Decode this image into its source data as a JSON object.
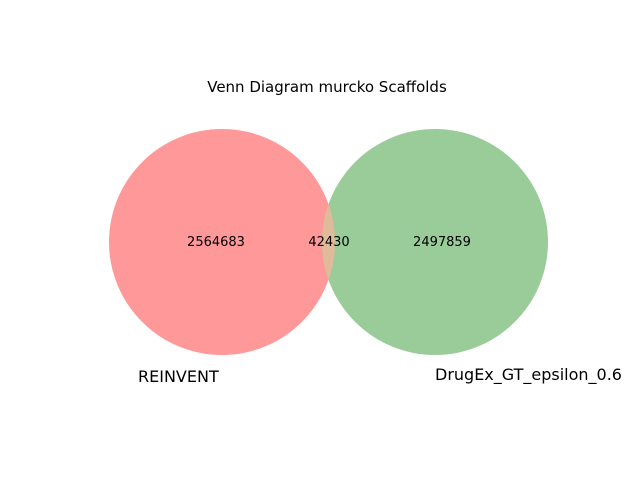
{
  "title": "Venn Diagram murcko Scaffolds",
  "sets": [
    {
      "name": "REINVENT",
      "only_count": "2564683",
      "color": "#ff9999"
    },
    {
      "name": "DrugEx_GT_epsilon_0.6",
      "only_count": "2497859",
      "color": "#99cc99"
    }
  ],
  "intersection": {
    "count": "42430",
    "color": "#e0bb99"
  }
}
